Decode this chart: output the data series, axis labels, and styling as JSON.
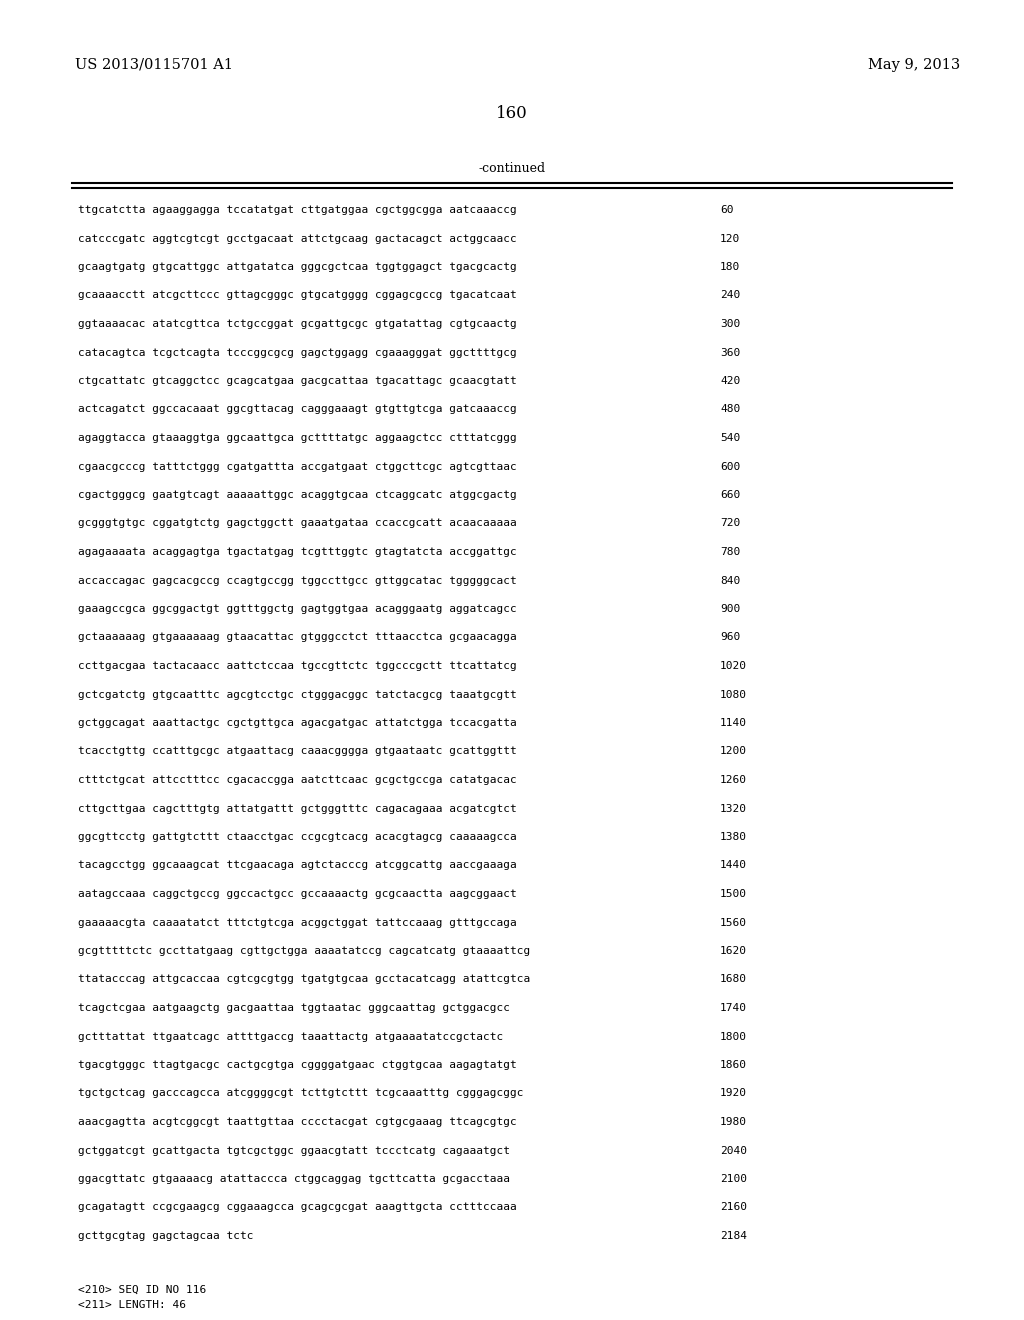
{
  "bg_color": "#ffffff",
  "header_left": "US 2013/0115701 A1",
  "header_right": "May 9, 2013",
  "page_number": "160",
  "continued_label": "-continued",
  "sequence_lines": [
    [
      "ttgcatctta agaaggagga tccatatgat cttgatggaa cgctggcgga aatcaaaccg",
      "60"
    ],
    [
      "catcccgatc aggtcgtcgt gcctgacaat attctgcaag gactacagct actggcaacc",
      "120"
    ],
    [
      "gcaagtgatg gtgcattggc attgatatca gggcgctcaa tggtggagct tgacgcactg",
      "180"
    ],
    [
      "gcaaaacctt atcgcttccc gttagcgggc gtgcatgggg cggagcgccg tgacatcaat",
      "240"
    ],
    [
      "ggtaaaacac atatcgttca tctgccggat gcgattgcgc gtgatattag cgtgcaactg",
      "300"
    ],
    [
      "catacagtca tcgctcagta tcccggcgcg gagctggagg cgaaagggat ggcttttgcg",
      "360"
    ],
    [
      "ctgcattatc gtcaggctcc gcagcatgaa gacgcattaa tgacattagc gcaacgtatt",
      "420"
    ],
    [
      "actcagatct ggccacaaat ggcgttacag cagggaaagt gtgttgtcga gatcaaaccg",
      "480"
    ],
    [
      "agaggtacca gtaaaggtga ggcaattgca gcttttatgc aggaagctcc ctttatcggg",
      "540"
    ],
    [
      "cgaacgcccg tatttctggg cgatgattta accgatgaat ctggcttcgc agtcgttaac",
      "600"
    ],
    [
      "cgactgggcg gaatgtcagt aaaaattggc acaggtgcaa ctcaggcatc atggcgactg",
      "660"
    ],
    [
      "gcgggtgtgc cggatgtctg gagctggctt gaaatgataa ccaccgcatt acaacaaaaa",
      "720"
    ],
    [
      "agagaaaata acaggagtga tgactatgag tcgtttggtc gtagtatcta accggattgc",
      "780"
    ],
    [
      "accaccagac gagcacgccg ccagtgccgg tggccttgcc gttggcatac tgggggcact",
      "840"
    ],
    [
      "gaaagccgca ggcggactgt ggtttggctg gagtggtgaa acagggaatg aggatcagcc",
      "900"
    ],
    [
      "gctaaaaaag gtgaaaaaag gtaacattac gtgggcctct tttaacctca gcgaacagga",
      "960"
    ],
    [
      "ccttgacgaa tactacaacc aattctccaa tgccgttctc tggcccgctt ttcattatcg",
      "1020"
    ],
    [
      "gctcgatctg gtgcaatttc agcgtcctgc ctgggacggc tatctacgcg taaatgcgtt",
      "1080"
    ],
    [
      "gctggcagat aaattactgc cgctgttgca agacgatgac attatctgga tccacgatta",
      "1140"
    ],
    [
      "tcacctgttg ccatttgcgc atgaattacg caaacgggga gtgaataatc gcattggttt",
      "1200"
    ],
    [
      "ctttctgcat attcctttcc cgacaccgga aatcttcaac gcgctgccga catatgacac",
      "1260"
    ],
    [
      "cttgcttgaa cagctttgtg attatgattt gctgggtttc cagacagaaa acgatcgtct",
      "1320"
    ],
    [
      "ggcgttcctg gattgtcttt ctaacctgac ccgcgtcacg acacgtagcg caaaaagcca",
      "1380"
    ],
    [
      "tacagcctgg ggcaaagcat ttcgaacaga agtctacccg atcggcattg aaccgaaaga",
      "1440"
    ],
    [
      "aatagccaaa caggctgccg ggccactgcc gccaaaactg gcgcaactta aagcggaact",
      "1500"
    ],
    [
      "gaaaaacgta caaaatatct tttctgtcga acggctggat tattccaaag gtttgccaga",
      "1560"
    ],
    [
      "gcgtttttctc gccttatgaag cgttgctgga aaaatatccg cagcatcatg gtaaaattcg",
      "1620"
    ],
    [
      "ttatacccag attgcaccaa cgtcgcgtgg tgatgtgcaa gcctacatcagg atattcgtca",
      "1680"
    ],
    [
      "tcagctcgaa aatgaagctg gacgaattaa tggtaatac gggcaattag gctggacgcc",
      "1740"
    ],
    [
      "gctttattat ttgaatcagc attttgaccg taaattactg atgaaaatatccgctactc",
      "1800"
    ],
    [
      "tgacgtgggc ttagtgacgc cactgcgtga cggggatgaac ctggtgcaa aagagtatgt",
      "1860"
    ],
    [
      "tgctgctcag gacccagcca atcggggcgt tcttgtcttt tcgcaaatttg cgggagcggc",
      "1920"
    ],
    [
      "aaacgagtta acgtcggcgt taattgttaa cccctacgat cgtgcgaaag ttcagcgtgc",
      "1980"
    ],
    [
      "gctggatcgt gcattgacta tgtcgctggc ggaacgtatt tccctcatg cagaaatgct",
      "2040"
    ],
    [
      "ggacgttatc gtgaaaacg atattaccca ctggcaggag tgcttcatta gcgacctaaa",
      "2100"
    ],
    [
      "gcagatagtt ccgcgaagcg cggaaagcca gcagcgcgat aaagttgcta cctttccaaa",
      "2160"
    ],
    [
      "gcttgcgtag gagctagcaa tctc",
      "2184"
    ]
  ],
  "footer_lines": [
    "<210> SEQ ID NO 116",
    "<211> LENGTH: 46"
  ],
  "header_fontsize": 10.5,
  "page_num_fontsize": 12,
  "continued_fontsize": 9,
  "seq_fontsize": 8.0,
  "footer_fontsize": 8.0
}
